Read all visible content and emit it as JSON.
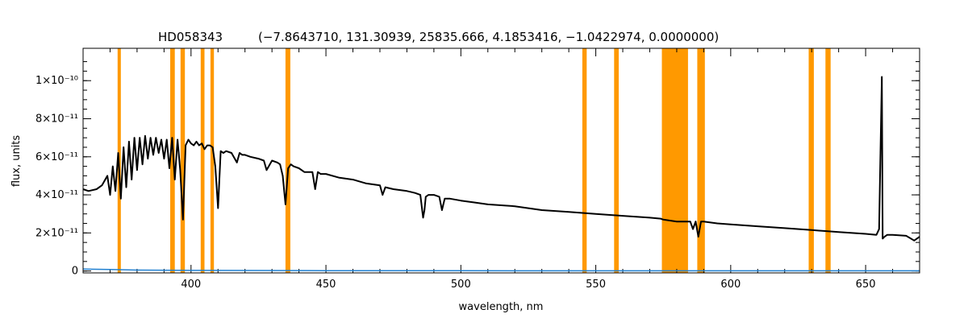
{
  "chart_data": {
    "type": "line",
    "title": "HD058343",
    "subtitle": "(−7.8643710, 131.30939, 25835.666, 4.1853416, −1.0422974, 0.0000000)",
    "xlabel": "wavelength, nm",
    "ylabel": "flux, units",
    "xlim": [
      360,
      670
    ],
    "ylim": [
      -1e-12,
      1.17e-10
    ],
    "grid": false,
    "x_ticks": [
      {
        "value": 400,
        "label": "400"
      },
      {
        "value": 450,
        "label": "450"
      },
      {
        "value": 500,
        "label": "500"
      },
      {
        "value": 550,
        "label": "550"
      },
      {
        "value": 600,
        "label": "600"
      },
      {
        "value": 650,
        "label": "650"
      }
    ],
    "y_ticks": [
      {
        "value": 0,
        "label": "0"
      },
      {
        "value": 2e-11,
        "label": "2×10⁻¹¹"
      },
      {
        "value": 4e-11,
        "label": "4×10⁻¹¹"
      },
      {
        "value": 6e-11,
        "label": "6×10⁻¹¹"
      },
      {
        "value": 8e-11,
        "label": "8×10⁻¹¹"
      },
      {
        "value": 1e-10,
        "label": "1×10⁻¹⁰"
      }
    ],
    "colors": {
      "flux": "#000000",
      "error": "#1f7fd0",
      "mask": "#ff9900"
    },
    "masked_regions": [
      [
        372.8,
        374.0
      ],
      [
        392.3,
        394.0
      ],
      [
        396.1,
        397.7
      ],
      [
        403.6,
        405.0
      ],
      [
        407.2,
        408.5
      ],
      [
        435.0,
        436.8
      ],
      [
        545.0,
        546.6
      ],
      [
        556.8,
        558.5
      ],
      [
        574.5,
        584.2
      ],
      [
        587.6,
        590.4
      ],
      [
        628.9,
        630.8
      ],
      [
        635.1,
        637.0
      ]
    ],
    "series": [
      {
        "x": [
          360,
          362,
          365,
          367,
          369,
          370,
          371,
          372,
          373,
          374,
          375,
          376,
          377,
          378,
          379,
          380,
          381,
          382,
          383,
          384,
          385,
          386,
          387,
          388,
          389,
          390,
          391,
          392,
          393,
          394,
          395,
          396,
          397,
          398,
          399,
          400,
          401,
          402,
          403,
          404,
          405,
          406,
          407,
          408,
          409,
          410,
          411,
          412,
          413,
          415,
          417,
          418,
          419,
          420,
          422,
          425,
          427,
          428,
          430,
          432,
          433,
          434,
          435,
          436,
          437,
          438,
          440,
          442,
          445,
          446,
          447,
          448,
          450,
          455,
          460,
          465,
          470,
          471,
          472,
          475,
          480,
          483,
          485,
          486,
          486.5,
          487,
          488,
          490,
          492,
          493,
          494,
          496,
          500,
          505,
          510,
          520,
          530,
          540,
          550,
          560,
          570,
          574,
          575,
          580,
          585,
          586,
          587,
          588,
          589,
          590,
          595,
          600,
          610,
          620,
          630,
          640,
          650,
          654,
          655,
          656,
          656.3,
          657,
          658,
          660,
          665,
          668,
          670
        ],
        "y": [
          4.3e-11,
          4.2e-11,
          4.3e-11,
          4.5e-11,
          5e-11,
          4e-11,
          5.5e-11,
          4.2e-11,
          6.2e-11,
          3.8e-11,
          6.5e-11,
          4.4e-11,
          6.8e-11,
          4.8e-11,
          7e-11,
          5.3e-11,
          7e-11,
          5.6e-11,
          7.1e-11,
          5.9e-11,
          7e-11,
          6.1e-11,
          7e-11,
          6.2e-11,
          6.9e-11,
          5.9e-11,
          6.9e-11,
          5.4e-11,
          7e-11,
          4.8e-11,
          6.9e-11,
          5.3e-11,
          2.7e-11,
          6.6e-11,
          6.9e-11,
          6.7e-11,
          6.6e-11,
          6.8e-11,
          6.6e-11,
          6.7e-11,
          6.4e-11,
          6.6e-11,
          6.6e-11,
          6.5e-11,
          5.5e-11,
          3.3e-11,
          6.3e-11,
          6.2e-11,
          6.3e-11,
          6.2e-11,
          5.7e-11,
          6.2e-11,
          6.1e-11,
          6.1e-11,
          6e-11,
          5.9e-11,
          5.8e-11,
          5.3e-11,
          5.8e-11,
          5.7e-11,
          5.6e-11,
          5e-11,
          3.5e-11,
          5.4e-11,
          5.6e-11,
          5.5e-11,
          5.4e-11,
          5.2e-11,
          5.2e-11,
          4.3e-11,
          5.2e-11,
          5.1e-11,
          5.1e-11,
          4.9e-11,
          4.8e-11,
          4.6e-11,
          4.5e-11,
          4e-11,
          4.4e-11,
          4.3e-11,
          4.2e-11,
          4.1e-11,
          4e-11,
          2.8e-11,
          3.2e-11,
          3.9e-11,
          4e-11,
          4e-11,
          3.9e-11,
          3.2e-11,
          3.8e-11,
          3.8e-11,
          3.7e-11,
          3.6e-11,
          3.5e-11,
          3.4e-11,
          3.2e-11,
          3.1e-11,
          3e-11,
          2.9e-11,
          2.8e-11,
          2.75e-11,
          2.7e-11,
          2.6e-11,
          2.6e-11,
          2.2e-11,
          2.6e-11,
          1.8e-11,
          2.6e-11,
          2.6e-11,
          2.5e-11,
          2.45e-11,
          2.35e-11,
          2.25e-11,
          2.15e-11,
          2.05e-11,
          1.95e-11,
          1.9e-11,
          2.2e-11,
          1.02e-10,
          1.7e-11,
          1.8e-11,
          1.9e-11,
          1.9e-11,
          1.85e-11,
          1.6e-11,
          1.8e-11
        ]
      },
      {
        "x": [
          360,
          370,
          380,
          400,
          450,
          500,
          550,
          600,
          650,
          670
        ],
        "y": [
          1e-12,
          8e-13,
          5e-13,
          3e-13,
          2e-13,
          1.5e-13,
          1.2e-13,
          1e-13,
          1e-13,
          1e-13
        ]
      }
    ]
  }
}
